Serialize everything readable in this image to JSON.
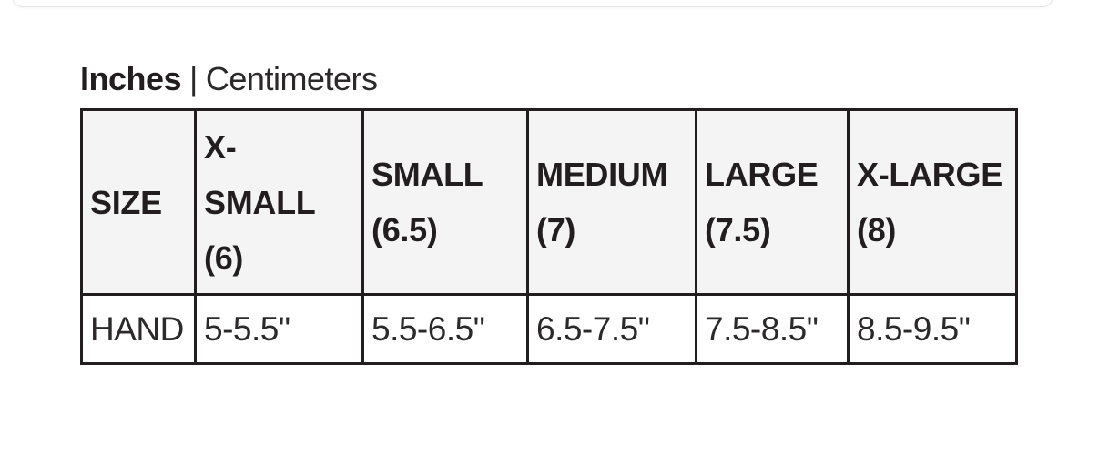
{
  "unit_toggle": {
    "primary": "Inches",
    "separator": "|",
    "secondary": "Centimeters"
  },
  "size_chart": {
    "columns": [
      {
        "label": "SIZE"
      },
      {
        "label": "X-\nSMALL\n(6)"
      },
      {
        "label": "SMALL\n(6.5)"
      },
      {
        "label": "MEDIUM\n(7)"
      },
      {
        "label": "LARGE\n(7.5)"
      },
      {
        "label": "X-LARGE\n(8)"
      }
    ],
    "rows": [
      {
        "label": "HAND",
        "values": [
          "5-5.5\"",
          "5.5-6.5\"",
          "6.5-7.5\"",
          "7.5-8.5\"",
          "8.5-9.5\""
        ]
      }
    ]
  },
  "colors": {
    "border": "#221e1f",
    "header_background": "#f4f4f4",
    "text": "#221e1f",
    "card_edge": "#e6e6e6"
  }
}
